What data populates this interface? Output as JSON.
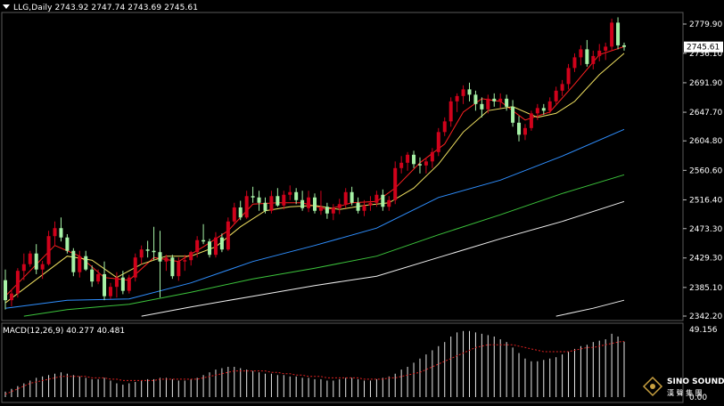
{
  "header": {
    "symbol_timeframe": "LLG,Daily",
    "ohlc": "2743.92 2747.74 2743.69 2745.61"
  },
  "macd_header": "MACD(12,26,9) 40.277 40.481",
  "logo": {
    "brand": "SINO SOUND",
    "sub": "漢 聲 集 團"
  },
  "colors": {
    "background": "#000000",
    "grid": "#1c1c1c",
    "candle_up": "#d0021b",
    "candle_down": "#a6f2a6",
    "ma_fast": "#ff2020",
    "ma_yellow": "#f0e060",
    "ma_blue": "#2f8fff",
    "ma_green": "#3cc43c",
    "ma_white": "#f0f0f0",
    "macd_hist": "#e8e8e8",
    "macd_signal": "#e02020",
    "price_tag": "#ffffff"
  },
  "chart_data": [
    {
      "type": "candlestick",
      "title": "LLG,Daily",
      "current_price": 2745.61,
      "current_price_label": "2745.61",
      "y_ticks": [
        "2779.90",
        "2736.10",
        "2691.90",
        "2647.70",
        "2604.80",
        "2560.60",
        "2516.40",
        "2473.30",
        "2429.30",
        "2385.10",
        "2342.20"
      ],
      "ylim": [
        2342.2,
        2779.9
      ],
      "candles": [
        [
          2396,
          2412,
          2352,
          2366
        ],
        [
          2366,
          2382,
          2357,
          2376
        ],
        [
          2376,
          2414,
          2370,
          2410
        ],
        [
          2410,
          2436,
          2396,
          2420
        ],
        [
          2420,
          2440,
          2416,
          2436
        ],
        [
          2436,
          2450,
          2405,
          2412
        ],
        [
          2412,
          2425,
          2398,
          2420
        ],
        [
          2420,
          2470,
          2418,
          2462
        ],
        [
          2462,
          2484,
          2448,
          2474
        ],
        [
          2474,
          2490,
          2454,
          2460
        ],
        [
          2460,
          2465,
          2436,
          2440
        ],
        [
          2440,
          2444,
          2402,
          2408
        ],
        [
          2408,
          2440,
          2400,
          2432
        ],
        [
          2432,
          2440,
          2410,
          2412
        ],
        [
          2412,
          2418,
          2386,
          2394
        ],
        [
          2394,
          2412,
          2390,
          2405
        ],
        [
          2405,
          2424,
          2366,
          2372
        ],
        [
          2372,
          2392,
          2368,
          2386
        ],
        [
          2386,
          2408,
          2370,
          2400
        ],
        [
          2400,
          2410,
          2375,
          2380
        ],
        [
          2380,
          2404,
          2376,
          2400
        ],
        [
          2400,
          2436,
          2394,
          2430
        ],
        [
          2430,
          2448,
          2420,
          2442
        ],
        [
          2442,
          2455,
          2430,
          2440
        ],
        [
          2440,
          2476,
          2426,
          2438
        ],
        [
          2438,
          2470,
          2370,
          2424
        ],
        [
          2424,
          2434,
          2410,
          2430
        ],
        [
          2430,
          2434,
          2398,
          2402
        ],
        [
          2402,
          2430,
          2395,
          2424
        ],
        [
          2424,
          2434,
          2410,
          2426
        ],
        [
          2426,
          2440,
          2418,
          2438
        ],
        [
          2438,
          2462,
          2430,
          2456
        ],
        [
          2456,
          2480,
          2450,
          2454
        ],
        [
          2454,
          2458,
          2430,
          2434
        ],
        [
          2434,
          2468,
          2430,
          2460
        ],
        [
          2460,
          2466,
          2438,
          2442
        ],
        [
          2442,
          2490,
          2440,
          2484
        ],
        [
          2484,
          2512,
          2480,
          2505
        ],
        [
          2505,
          2515,
          2486,
          2490
        ],
        [
          2490,
          2530,
          2488,
          2522
        ],
        [
          2522,
          2536,
          2512,
          2520
        ],
        [
          2520,
          2530,
          2500,
          2512
        ],
        [
          2512,
          2520,
          2496,
          2500
        ],
        [
          2500,
          2530,
          2496,
          2522
        ],
        [
          2522,
          2534,
          2506,
          2508
        ],
        [
          2508,
          2530,
          2502,
          2524
        ],
        [
          2524,
          2538,
          2516,
          2528
        ],
        [
          2528,
          2534,
          2510,
          2516
        ],
        [
          2516,
          2530,
          2500,
          2504
        ],
        [
          2504,
          2530,
          2498,
          2520
        ],
        [
          2520,
          2526,
          2496,
          2500
        ],
        [
          2500,
          2530,
          2494,
          2506
        ],
        [
          2506,
          2512,
          2488,
          2496
        ],
        [
          2496,
          2510,
          2486,
          2504
        ],
        [
          2504,
          2518,
          2495,
          2510
        ],
        [
          2510,
          2534,
          2504,
          2528
        ],
        [
          2528,
          2536,
          2508,
          2512
        ],
        [
          2512,
          2520,
          2496,
          2500
        ],
        [
          2500,
          2516,
          2492,
          2508
        ],
        [
          2508,
          2522,
          2500,
          2512
        ],
        [
          2512,
          2530,
          2506,
          2524
        ],
        [
          2524,
          2532,
          2500,
          2506
        ],
        [
          2506,
          2522,
          2500,
          2516
        ],
        [
          2516,
          2574,
          2510,
          2564
        ],
        [
          2564,
          2582,
          2556,
          2572
        ],
        [
          2572,
          2588,
          2560,
          2584
        ],
        [
          2584,
          2590,
          2564,
          2570
        ],
        [
          2570,
          2580,
          2556,
          2568
        ],
        [
          2568,
          2580,
          2556,
          2574
        ],
        [
          2574,
          2594,
          2564,
          2588
        ],
        [
          2588,
          2624,
          2582,
          2618
        ],
        [
          2618,
          2640,
          2612,
          2634
        ],
        [
          2634,
          2670,
          2626,
          2664
        ],
        [
          2664,
          2676,
          2648,
          2672
        ],
        [
          2672,
          2688,
          2660,
          2682
        ],
        [
          2682,
          2692,
          2664,
          2674
        ],
        [
          2674,
          2680,
          2650,
          2660
        ],
        [
          2660,
          2670,
          2640,
          2652
        ],
        [
          2652,
          2674,
          2646,
          2668
        ],
        [
          2668,
          2676,
          2656,
          2664
        ],
        [
          2664,
          2676,
          2654,
          2668
        ],
        [
          2668,
          2674,
          2650,
          2656
        ],
        [
          2656,
          2666,
          2626,
          2632
        ],
        [
          2632,
          2642,
          2604,
          2614
        ],
        [
          2614,
          2630,
          2606,
          2624
        ],
        [
          2624,
          2650,
          2620,
          2646
        ],
        [
          2646,
          2660,
          2636,
          2654
        ],
        [
          2654,
          2660,
          2644,
          2650
        ],
        [
          2650,
          2670,
          2646,
          2664
        ],
        [
          2664,
          2686,
          2660,
          2680
        ],
        [
          2680,
          2696,
          2672,
          2690
        ],
        [
          2690,
          2720,
          2682,
          2714
        ],
        [
          2714,
          2736,
          2708,
          2730
        ],
        [
          2730,
          2748,
          2718,
          2742
        ],
        [
          2742,
          2756,
          2716,
          2720
        ],
        [
          2720,
          2740,
          2712,
          2732
        ],
        [
          2732,
          2750,
          2724,
          2740
        ],
        [
          2740,
          2752,
          2726,
          2746
        ],
        [
          2746,
          2788,
          2740,
          2782
        ],
        [
          2782,
          2790,
          2742,
          2748
        ],
        [
          2748,
          2752,
          2740,
          2745.61
        ]
      ],
      "moving_averages": [
        {
          "name": "ma_fast",
          "values": [
            [
              0,
              2372
            ],
            [
              8,
              2448
            ],
            [
              12,
              2432
            ],
            [
              16,
              2400
            ],
            [
              20,
              2396
            ],
            [
              24,
              2430
            ],
            [
              28,
              2424
            ],
            [
              32,
              2446
            ],
            [
              36,
              2470
            ],
            [
              40,
              2510
            ],
            [
              44,
              2512
            ],
            [
              48,
              2512
            ],
            [
              52,
              2502
            ],
            [
              56,
              2512
            ],
            [
              60,
              2514
            ],
            [
              63,
              2534
            ],
            [
              67,
              2572
            ],
            [
              71,
              2600
            ],
            [
              74,
              2648
            ],
            [
              77,
              2668
            ],
            [
              80,
              2664
            ],
            [
              84,
              2636
            ],
            [
              88,
              2648
            ],
            [
              92,
              2690
            ],
            [
              96,
              2734
            ],
            [
              100,
              2746
            ]
          ]
        },
        {
          "name": "ma_yellow",
          "values": [
            [
              0,
              2362
            ],
            [
              6,
              2404
            ],
            [
              10,
              2432
            ],
            [
              14,
              2426
            ],
            [
              18,
              2400
            ],
            [
              22,
              2420
            ],
            [
              26,
              2432
            ],
            [
              30,
              2432
            ],
            [
              34,
              2446
            ],
            [
              38,
              2476
            ],
            [
              42,
              2500
            ],
            [
              46,
              2506
            ],
            [
              50,
              2508
            ],
            [
              54,
              2502
            ],
            [
              58,
              2508
            ],
            [
              62,
              2512
            ],
            [
              66,
              2534
            ],
            [
              70,
              2570
            ],
            [
              74,
              2618
            ],
            [
              78,
              2650
            ],
            [
              82,
              2656
            ],
            [
              86,
              2640
            ],
            [
              89,
              2646
            ],
            [
              92,
              2664
            ],
            [
              96,
              2704
            ],
            [
              100,
              2736
            ]
          ]
        },
        {
          "name": "ma_blue",
          "values": [
            [
              0,
              2354
            ],
            [
              10,
              2366
            ],
            [
              20,
              2368
            ],
            [
              30,
              2392
            ],
            [
              40,
              2424
            ],
            [
              50,
              2448
            ],
            [
              60,
              2474
            ],
            [
              70,
              2520
            ],
            [
              80,
              2546
            ],
            [
              90,
              2582
            ],
            [
              100,
              2622
            ]
          ]
        },
        {
          "name": "ma_green",
          "values": [
            [
              3,
              2342
            ],
            [
              10,
              2352
            ],
            [
              20,
              2360
            ],
            [
              30,
              2378
            ],
            [
              40,
              2398
            ],
            [
              50,
              2414
            ],
            [
              60,
              2432
            ],
            [
              70,
              2464
            ],
            [
              80,
              2494
            ],
            [
              90,
              2526
            ],
            [
              100,
              2554
            ]
          ]
        },
        {
          "name": "ma_white",
          "values": [
            [
              22,
              2342
            ],
            [
              30,
              2356
            ],
            [
              40,
              2372
            ],
            [
              50,
              2388
            ],
            [
              60,
              2402
            ],
            [
              70,
              2430
            ],
            [
              80,
              2458
            ],
            [
              90,
              2484
            ],
            [
              100,
              2514
            ]
          ]
        },
        {
          "name": "ma_white_long",
          "values": [
            [
              89,
              2342
            ],
            [
              95,
              2354
            ],
            [
              100,
              2366
            ]
          ]
        }
      ]
    },
    {
      "type": "bar",
      "title": "MACD(12,26,9)",
      "histogram_value": 40.277,
      "signal_value": 40.481,
      "y_tick_top": "49.156",
      "y_tick_bottom": "0.00",
      "ylim": [
        0,
        49.156
      ],
      "histogram": [
        4,
        6,
        8,
        10,
        12,
        14,
        15,
        16,
        17,
        18,
        17,
        16,
        15,
        14,
        13,
        13,
        14,
        12,
        10,
        9,
        10,
        11,
        12,
        13,
        13,
        14,
        14,
        13,
        12,
        12,
        13,
        14,
        16,
        18,
        20,
        21,
        22,
        22,
        21,
        20,
        19,
        18,
        17,
        17,
        16,
        16,
        15,
        15,
        14,
        14,
        13,
        13,
        12,
        12,
        13,
        14,
        14,
        13,
        12,
        12,
        13,
        14,
        15,
        17,
        20,
        22,
        25,
        28,
        31,
        34,
        37,
        40,
        44,
        47,
        48,
        48,
        47,
        46,
        45,
        44,
        42,
        40,
        36,
        32,
        28,
        26,
        26,
        27,
        28,
        29,
        31,
        33,
        35,
        37,
        38,
        40,
        41,
        42,
        46,
        44,
        40.277
      ],
      "signal": [
        2,
        4,
        6,
        8,
        10,
        11,
        12,
        13,
        14,
        15,
        15,
        15,
        15,
        15,
        14,
        14,
        14,
        13,
        13,
        12,
        12,
        12,
        12,
        12,
        12,
        13,
        13,
        13,
        13,
        13,
        13,
        13,
        14,
        15,
        16,
        17,
        18,
        19,
        19,
        19,
        19,
        19,
        19,
        18,
        18,
        17,
        17,
        16,
        16,
        15,
        15,
        15,
        14,
        14,
        14,
        14,
        14,
        14,
        13,
        13,
        13,
        13,
        14,
        14,
        15,
        16,
        17,
        18,
        20,
        22,
        24,
        26,
        28,
        30,
        32,
        34,
        36,
        37,
        38,
        38,
        38,
        38,
        38,
        37,
        36,
        35,
        34,
        33,
        33,
        33,
        33,
        33,
        34,
        35,
        36,
        36,
        37,
        38,
        39,
        40,
        40.481
      ]
    }
  ]
}
